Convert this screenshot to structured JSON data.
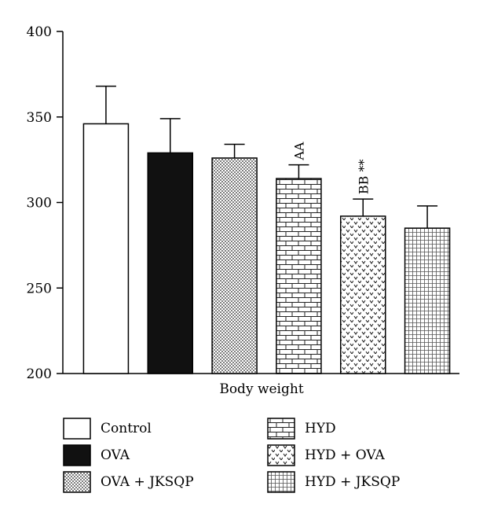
{
  "chart_data": {
    "type": "bar",
    "xlabel": "Body weight",
    "ylim": [
      200,
      400
    ],
    "yticks": [
      "200",
      "250",
      "300",
      "350",
      "400"
    ],
    "categories": [
      "Control",
      "OVA",
      "OVA + JKSQP",
      "HYD",
      "HYD + OVA",
      "HYD + JKSQP"
    ],
    "values": [
      346,
      329,
      326,
      314,
      292,
      285
    ],
    "errors": [
      22,
      20,
      8,
      8,
      10,
      13
    ],
    "annotations": [
      "",
      "",
      "",
      "AA",
      "BB **",
      ""
    ],
    "patterns": [
      "white",
      "black",
      "dots",
      "bricks",
      "chevrons",
      "grid"
    ],
    "grid": false,
    "legend": "bottom"
  },
  "legend": {
    "items": [
      "Control",
      "OVA",
      "OVA + JKSQP",
      "HYD",
      "HYD + OVA",
      "HYD + JKSQP"
    ]
  }
}
